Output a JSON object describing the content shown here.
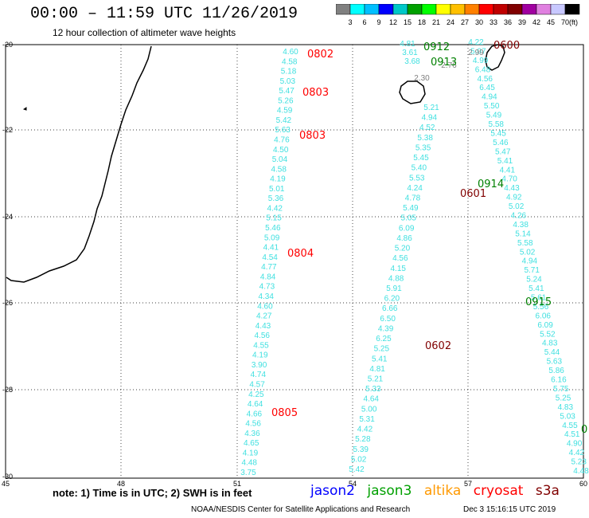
{
  "header": {
    "title": "00:00 – 11:59 UTC 11/26/2019",
    "subtitle": "12 hour collection of altimeter wave heights"
  },
  "color_scale": {
    "labels": [
      "3",
      "6",
      "9",
      "12",
      "15",
      "18",
      "21",
      "24",
      "27",
      "30",
      "33",
      "36",
      "39",
      "42",
      "45",
      "70"
    ],
    "unit": "(ft)",
    "colors": [
      "#808080",
      "#00ffff",
      "#00bfff",
      "#0000ff",
      "#00c8c8",
      "#00a000",
      "#00ff00",
      "#ffff00",
      "#ffc000",
      "#ff8000",
      "#ff0000",
      "#c00000",
      "#800000",
      "#a000a0",
      "#e080e0",
      "#c8c8ff",
      "#000000"
    ]
  },
  "axes": {
    "lat_labels": [
      "-20",
      "-22",
      "-24",
      "-26",
      "-28",
      "-30"
    ],
    "lon_labels": [
      "45",
      "48",
      "51",
      "54",
      "57",
      "60"
    ]
  },
  "track_labels": [
    {
      "text": "0802",
      "color": "#ff0000"
    },
    {
      "text": "0803",
      "color": "#ff0000"
    },
    {
      "text": "0803",
      "color": "#ff0000"
    },
    {
      "text": "0804",
      "color": "#ff0000"
    },
    {
      "text": "0805",
      "color": "#ff0000"
    },
    {
      "text": "0912",
      "color": "#008000"
    },
    {
      "text": "0913",
      "color": "#008000"
    },
    {
      "text": "0914",
      "color": "#008000"
    },
    {
      "text": "0915",
      "color": "#008000"
    },
    {
      "text": "0",
      "color": "#008000"
    },
    {
      "text": "0600",
      "color": "#800000"
    },
    {
      "text": "0601",
      "color": "#800000"
    },
    {
      "text": "0602",
      "color": "#800000"
    }
  ],
  "tracks": [
    {
      "name": "track-0802",
      "color": "#40e0e0",
      "values": [
        "4.60",
        "4.58",
        "5.18",
        "5.03",
        "5.47",
        "5.26",
        "4.59",
        "5.42",
        "5.63",
        "4.76",
        "4.50",
        "5.04",
        "4.58",
        "4.19",
        "5.01",
        "5.36",
        "4.42",
        "5.15",
        "5.46",
        "5.09",
        "4.41",
        "4.54",
        "4.77",
        "4.84",
        "4.73",
        "4.34",
        "4.60",
        "4.27",
        "4.43",
        "4.56",
        "4.55",
        "4.19",
        "3.90",
        "4.74",
        "4.57",
        "4.25",
        "4.64",
        "4.66",
        "4.56",
        "4.36",
        "4.65",
        "4.19",
        "4.48",
        "3.75"
      ]
    },
    {
      "name": "track-0602",
      "color": "#40e0e0",
      "values": [
        "5.21",
        "4.94",
        "4.52",
        "5.38",
        "5.35",
        "5.45",
        "5.40",
        "5.53",
        "4.24",
        "4.78",
        "5.49",
        "5.05",
        "6.09",
        "4.86",
        "5.20",
        "4.56",
        "4.15",
        "4.88",
        "5.91",
        "6.20",
        "6.66",
        "6.50",
        "4.39",
        "6.25",
        "5.25",
        "5.41",
        "4.81",
        "5.21",
        "5.33",
        "4.64",
        "5.00",
        "5.31",
        "4.42",
        "5.28",
        "5.39",
        "5.02",
        "5.42"
      ]
    },
    {
      "name": "track-0600",
      "color": "#40e0e0",
      "values": [
        "4.22",
        "5.07",
        "4.99",
        "6.48",
        "4.56",
        "6.45",
        "4.94",
        "5.50",
        "5.49",
        "5.58",
        "5.45",
        "5.46",
        "5.47",
        "5.41",
        "4.41",
        "4.70",
        "4.43",
        "4.92",
        "5.02",
        "4.26",
        "4.38",
        "5.14",
        "5.58",
        "5.02",
        "4.94",
        "5.71",
        "5.24",
        "5.41",
        "5.61",
        "5.56",
        "6.06",
        "6.09",
        "5.52",
        "4.83",
        "5.44",
        "5.63",
        "5.86",
        "6.16",
        "5.75",
        "5.25",
        "4.83",
        "5.03",
        "4.55",
        "4.51",
        "4.90",
        "4.42",
        "5.23",
        "4.48"
      ]
    },
    {
      "name": "track-0912",
      "color": "#40e0e0",
      "values": [
        "4.81",
        "3.61",
        "3.68"
      ]
    },
    {
      "name": "track-gray",
      "color": "#808080",
      "values": [
        "2.99",
        "2.76",
        "2.30"
      ]
    }
  ],
  "footer": {
    "note": "note:  1) Time is in UTC;  2) SWH is in feet",
    "satellites": [
      {
        "name": "jason2",
        "color": "#0000ff"
      },
      {
        "name": "jason3",
        "color": "#00a000"
      },
      {
        "name": "altika",
        "color": "#ff9900"
      },
      {
        "name": "cryosat",
        "color": "#ff0000"
      },
      {
        "name": "s3a",
        "color": "#800000"
      }
    ],
    "credit": "NOAA/NESDIS Center for Satellite Applications and Research",
    "date": "Dec  3 15:16:15 UTC 2019"
  }
}
